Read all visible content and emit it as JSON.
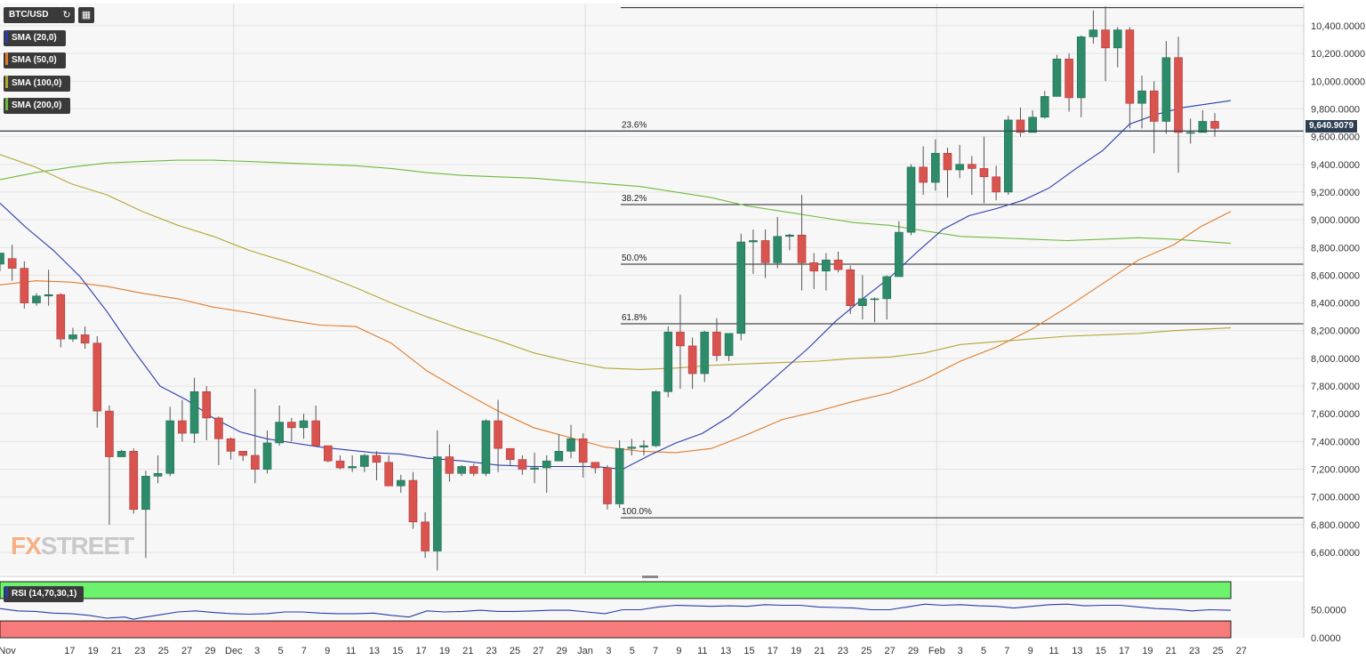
{
  "toolbar": {
    "symbol": "BTC/USD",
    "refresh_icon": "refresh-icon",
    "calendar_icon": "calendar-icon"
  },
  "legend": [
    {
      "label": "SMA (20,0)",
      "color": "#2a3bab"
    },
    {
      "label": "SMA (50,0)",
      "color": "#e07b2a"
    },
    {
      "label": "SMA (100,0)",
      "color": "#b5a534"
    },
    {
      "label": "SMA (200,0)",
      "color": "#6cbb3c"
    }
  ],
  "rsi_label": "RSI (14,70,30,1)",
  "price_tag": "9,640.9079",
  "watermark": {
    "a": "FX",
    "b": "STREET"
  },
  "chart_data": {
    "type": "candlestick",
    "title": "",
    "y_ticks": [
      "10,400.0000",
      "10,200.0000",
      "10,000.0000",
      "9,800.0000",
      "9,600.0000",
      "9,400.0000",
      "9,200.0000",
      "9,000.0000",
      "8,800.0000",
      "8,600.0000",
      "8,400.0000",
      "8,200.0000",
      "8,000.0000",
      "7,800.0000",
      "7,600.0000",
      "7,400.0000",
      "7,200.0000",
      "7,000.0000",
      "6,800.0000",
      "6,600.0000"
    ],
    "ylim": [
      6440,
      10560
    ],
    "x_ticks": [
      "Nov",
      "17",
      "19",
      "21",
      "23",
      "25",
      "27",
      "29",
      "Dec",
      "3",
      "5",
      "7",
      "9",
      "11",
      "13",
      "15",
      "17",
      "19",
      "21",
      "23",
      "25",
      "27",
      "29",
      "Jan",
      "3",
      "5",
      "7",
      "9",
      "11",
      "13",
      "15",
      "17",
      "19",
      "21",
      "23",
      "25",
      "27",
      "29",
      "Feb",
      "3",
      "5",
      "7",
      "9",
      "11",
      "13",
      "15",
      "17",
      "19",
      "21",
      "23",
      "25",
      "27"
    ],
    "rsi_ticks": [
      "50.0000",
      "0.0000"
    ],
    "current_price": 9640.9079,
    "fibonacci": [
      {
        "label": "23.6%",
        "value": 9640
      },
      {
        "label": "38.2%",
        "value": 9110
      },
      {
        "label": "50.0%",
        "value": 8680
      },
      {
        "label": "61.8%",
        "value": 8250
      },
      {
        "label": "100.0%",
        "value": 6850
      }
    ],
    "fib_top": 10530,
    "candles": [
      [
        8680,
        8760,
        8630,
        8720
      ],
      [
        8720,
        8650,
        8560,
        8820
      ],
      [
        8650,
        8400,
        8360,
        8700
      ],
      [
        8400,
        8450,
        8380,
        8470
      ],
      [
        8450,
        8460,
        8380,
        8640
      ],
      [
        8460,
        8140,
        8080,
        8470
      ],
      [
        8140,
        8170,
        8120,
        8220
      ],
      [
        8170,
        8110,
        8070,
        8230
      ],
      [
        8110,
        7620,
        7500,
        8160
      ],
      [
        7620,
        7290,
        6800,
        7660
      ],
      [
        7290,
        7330,
        7290,
        7340
      ],
      [
        7330,
        6910,
        6880,
        7350
      ],
      [
        6910,
        7150,
        6560,
        7190
      ],
      [
        7150,
        7170,
        7100,
        7300
      ],
      [
        7170,
        7550,
        7150,
        7650
      ],
      [
        7550,
        7460,
        7400,
        7700
      ],
      [
        7460,
        7760,
        7390,
        7860
      ],
      [
        7760,
        7570,
        7410,
        7800
      ],
      [
        7570,
        7420,
        7230,
        7580
      ],
      [
        7420,
        7330,
        7270,
        7430
      ],
      [
        7330,
        7300,
        7260,
        7330
      ],
      [
        7300,
        7200,
        7100,
        7780
      ],
      [
        7200,
        7390,
        7170,
        7480
      ],
      [
        7390,
        7540,
        7370,
        7660
      ],
      [
        7540,
        7500,
        7400,
        7570
      ],
      [
        7500,
        7550,
        7420,
        7600
      ],
      [
        7550,
        7370,
        7370,
        7660
      ],
      [
        7370,
        7260,
        7250,
        7350
      ],
      [
        7260,
        7210,
        7200,
        7300
      ],
      [
        7210,
        7220,
        7180,
        7300
      ],
      [
        7220,
        7300,
        7180,
        7310
      ],
      [
        7300,
        7250,
        7120,
        7330
      ],
      [
        7250,
        7080,
        7080,
        7300
      ],
      [
        7080,
        7120,
        7030,
        7160
      ],
      [
        7120,
        6820,
        6770,
        7180
      ],
      [
        6820,
        6610,
        6560,
        6890
      ],
      [
        6610,
        7290,
        6470,
        7480
      ],
      [
        7290,
        7170,
        7110,
        7380
      ],
      [
        7170,
        7220,
        7150,
        7230
      ],
      [
        7220,
        7170,
        7150,
        7240
      ],
      [
        7170,
        7550,
        7150,
        7560
      ],
      [
        7550,
        7350,
        7180,
        7700
      ],
      [
        7350,
        7270,
        7230,
        7350
      ],
      [
        7270,
        7200,
        7160,
        7300
      ],
      [
        7200,
        7210,
        7100,
        7320
      ],
      [
        7210,
        7260,
        7030,
        7300
      ],
      [
        7260,
        7330,
        7270,
        7450
      ],
      [
        7330,
        7420,
        7280,
        7520
      ],
      [
        7420,
        7250,
        7140,
        7460
      ],
      [
        7250,
        7210,
        7170,
        7220
      ],
      [
        7210,
        6950,
        6910,
        7230
      ],
      [
        6950,
        7350,
        6920,
        7410
      ],
      [
        7350,
        7360,
        7300,
        7420
      ],
      [
        7360,
        7370,
        7300,
        7410
      ],
      [
        7370,
        7760,
        7360,
        7770
      ],
      [
        7760,
        8190,
        7720,
        8230
      ],
      [
        8190,
        8090,
        7780,
        8460
      ],
      [
        8090,
        7890,
        7780,
        8150
      ],
      [
        7890,
        8190,
        7830,
        8200
      ],
      [
        8190,
        8020,
        7980,
        8290
      ],
      [
        8020,
        8180,
        7980,
        8180
      ],
      [
        8180,
        8840,
        8130,
        8900
      ],
      [
        8840,
        8850,
        8610,
        8930
      ],
      [
        8850,
        8690,
        8580,
        8930
      ],
      [
        8690,
        8880,
        8650,
        9020
      ],
      [
        8880,
        8890,
        8780,
        8900
      ],
      [
        8890,
        8690,
        8490,
        9180
      ],
      [
        8690,
        8630,
        8500,
        8760
      ],
      [
        8630,
        8710,
        8490,
        8760
      ],
      [
        8710,
        8640,
        8620,
        8770
      ],
      [
        8640,
        8380,
        8320,
        8670
      ],
      [
        8380,
        8430,
        8280,
        8600
      ],
      [
        8430,
        8430,
        8260,
        8440
      ],
      [
        8430,
        8590,
        8280,
        8600
      ],
      [
        8590,
        8910,
        8600,
        8990
      ],
      [
        8910,
        9380,
        8890,
        9400
      ],
      [
        9380,
        9270,
        9180,
        9530
      ],
      [
        9270,
        9480,
        9210,
        9580
      ],
      [
        9480,
        9360,
        9160,
        9520
      ],
      [
        9360,
        9400,
        9300,
        9540
      ],
      [
        9400,
        9370,
        9180,
        9460
      ],
      [
        9370,
        9310,
        9120,
        9600
      ],
      [
        9310,
        9200,
        9140,
        9390
      ],
      [
        9200,
        9720,
        9180,
        9750
      ],
      [
        9720,
        9630,
        9600,
        9810
      ],
      [
        9630,
        9740,
        9630,
        9790
      ],
      [
        9740,
        9890,
        9730,
        9930
      ],
      [
        9890,
        10160,
        9890,
        10190
      ],
      [
        10160,
        9880,
        9780,
        10200
      ],
      [
        9880,
        10320,
        9740,
        10330
      ],
      [
        10320,
        10370,
        10270,
        10510
      ],
      [
        10370,
        10240,
        10000,
        10540
      ],
      [
        10240,
        10370,
        10100,
        10390
      ],
      [
        10370,
        9840,
        9660,
        10390
      ],
      [
        9840,
        9930,
        9660,
        10040
      ],
      [
        9930,
        9710,
        9480,
        10000
      ],
      [
        9710,
        10170,
        9620,
        10290
      ],
      [
        10170,
        9630,
        9340,
        10320
      ],
      [
        9630,
        9630,
        9550,
        9730
      ],
      [
        9630,
        9710,
        9660,
        9790
      ],
      [
        9710,
        9660,
        9600,
        9770
      ]
    ],
    "sma20": [
      [
        0,
        9120
      ],
      [
        10,
        9060
      ],
      [
        30,
        8940
      ],
      [
        60,
        8780
      ],
      [
        90,
        8590
      ],
      [
        120,
        8340
      ],
      [
        150,
        8060
      ],
      [
        180,
        7800
      ],
      [
        210,
        7700
      ],
      [
        240,
        7570
      ],
      [
        270,
        7470
      ],
      [
        300,
        7420
      ],
      [
        330,
        7390
      ],
      [
        360,
        7360
      ],
      [
        390,
        7340
      ],
      [
        420,
        7320
      ],
      [
        450,
        7310
      ],
      [
        480,
        7280
      ],
      [
        520,
        7260
      ],
      [
        560,
        7230
      ],
      [
        600,
        7220
      ],
      [
        640,
        7220
      ],
      [
        670,
        7220
      ],
      [
        700,
        7200
      ],
      [
        730,
        7300
      ],
      [
        760,
        7390
      ],
      [
        790,
        7460
      ],
      [
        820,
        7580
      ],
      [
        850,
        7740
      ],
      [
        880,
        7910
      ],
      [
        910,
        8080
      ],
      [
        940,
        8270
      ],
      [
        970,
        8430
      ],
      [
        1000,
        8580
      ],
      [
        1030,
        8760
      ],
      [
        1060,
        8930
      ],
      [
        1090,
        9030
      ],
      [
        1120,
        9080
      ],
      [
        1150,
        9140
      ],
      [
        1180,
        9230
      ],
      [
        1210,
        9370
      ],
      [
        1240,
        9500
      ],
      [
        1270,
        9690
      ],
      [
        1300,
        9760
      ],
      [
        1330,
        9810
      ],
      [
        1384,
        9860
      ]
    ],
    "sma50": [
      [
        0,
        8530
      ],
      [
        40,
        8560
      ],
      [
        80,
        8550
      ],
      [
        120,
        8520
      ],
      [
        160,
        8470
      ],
      [
        200,
        8430
      ],
      [
        240,
        8370
      ],
      [
        280,
        8330
      ],
      [
        320,
        8280
      ],
      [
        360,
        8240
      ],
      [
        400,
        8230
      ],
      [
        440,
        8110
      ],
      [
        480,
        7910
      ],
      [
        520,
        7760
      ],
      [
        560,
        7620
      ],
      [
        600,
        7500
      ],
      [
        640,
        7430
      ],
      [
        680,
        7360
      ],
      [
        720,
        7330
      ],
      [
        760,
        7320
      ],
      [
        800,
        7350
      ],
      [
        840,
        7450
      ],
      [
        880,
        7560
      ],
      [
        920,
        7620
      ],
      [
        960,
        7690
      ],
      [
        1000,
        7750
      ],
      [
        1040,
        7850
      ],
      [
        1080,
        7980
      ],
      [
        1120,
        8080
      ],
      [
        1160,
        8210
      ],
      [
        1200,
        8370
      ],
      [
        1240,
        8540
      ],
      [
        1280,
        8710
      ],
      [
        1320,
        8820
      ],
      [
        1350,
        8950
      ],
      [
        1384,
        9060
      ]
    ],
    "sma100": [
      [
        0,
        9470
      ],
      [
        40,
        9380
      ],
      [
        80,
        9260
      ],
      [
        120,
        9180
      ],
      [
        160,
        9060
      ],
      [
        200,
        8960
      ],
      [
        240,
        8880
      ],
      [
        280,
        8780
      ],
      [
        320,
        8700
      ],
      [
        360,
        8610
      ],
      [
        400,
        8510
      ],
      [
        440,
        8400
      ],
      [
        480,
        8300
      ],
      [
        520,
        8210
      ],
      [
        560,
        8130
      ],
      [
        600,
        8040
      ],
      [
        640,
        7980
      ],
      [
        680,
        7930
      ],
      [
        720,
        7920
      ],
      [
        760,
        7930
      ],
      [
        800,
        7950
      ],
      [
        840,
        7960
      ],
      [
        880,
        7970
      ],
      [
        920,
        7980
      ],
      [
        960,
        8000
      ],
      [
        1000,
        8010
      ],
      [
        1040,
        8040
      ],
      [
        1080,
        8100
      ],
      [
        1120,
        8120
      ],
      [
        1160,
        8140
      ],
      [
        1200,
        8160
      ],
      [
        1240,
        8170
      ],
      [
        1280,
        8180
      ],
      [
        1320,
        8200
      ],
      [
        1384,
        8220
      ]
    ],
    "sma200": [
      [
        0,
        9290
      ],
      [
        40,
        9340
      ],
      [
        80,
        9380
      ],
      [
        120,
        9410
      ],
      [
        160,
        9420
      ],
      [
        200,
        9430
      ],
      [
        240,
        9430
      ],
      [
        280,
        9420
      ],
      [
        320,
        9410
      ],
      [
        360,
        9400
      ],
      [
        400,
        9390
      ],
      [
        440,
        9370
      ],
      [
        480,
        9340
      ],
      [
        520,
        9320
      ],
      [
        560,
        9310
      ],
      [
        600,
        9300
      ],
      [
        640,
        9280
      ],
      [
        680,
        9260
      ],
      [
        720,
        9240
      ],
      [
        760,
        9200
      ],
      [
        800,
        9160
      ],
      [
        840,
        9100
      ],
      [
        880,
        9060
      ],
      [
        920,
        9020
      ],
      [
        960,
        8980
      ],
      [
        1000,
        8960
      ],
      [
        1040,
        8920
      ],
      [
        1080,
        8880
      ],
      [
        1120,
        8870
      ],
      [
        1160,
        8860
      ],
      [
        1200,
        8850
      ],
      [
        1240,
        8860
      ],
      [
        1280,
        8870
      ],
      [
        1320,
        8860
      ],
      [
        1384,
        8830
      ]
    ],
    "rsi": [
      [
        0,
        52
      ],
      [
        20,
        48
      ],
      [
        40,
        47
      ],
      [
        60,
        44
      ],
      [
        80,
        43
      ],
      [
        100,
        40
      ],
      [
        120,
        35
      ],
      [
        140,
        37
      ],
      [
        150,
        33
      ],
      [
        160,
        36
      ],
      [
        180,
        41
      ],
      [
        200,
        46
      ],
      [
        220,
        48
      ],
      [
        240,
        45
      ],
      [
        260,
        43
      ],
      [
        280,
        42
      ],
      [
        300,
        43
      ],
      [
        320,
        46
      ],
      [
        340,
        46
      ],
      [
        360,
        44
      ],
      [
        380,
        43
      ],
      [
        400,
        43
      ],
      [
        420,
        44
      ],
      [
        440,
        40
      ],
      [
        460,
        37
      ],
      [
        480,
        48
      ],
      [
        500,
        46
      ],
      [
        520,
        47
      ],
      [
        540,
        49
      ],
      [
        560,
        47
      ],
      [
        580,
        47
      ],
      [
        600,
        48
      ],
      [
        620,
        49
      ],
      [
        640,
        49
      ],
      [
        660,
        46
      ],
      [
        680,
        43
      ],
      [
        700,
        50
      ],
      [
        720,
        50
      ],
      [
        740,
        55
      ],
      [
        760,
        58
      ],
      [
        780,
        57
      ],
      [
        800,
        56
      ],
      [
        820,
        57
      ],
      [
        840,
        56
      ],
      [
        860,
        59
      ],
      [
        880,
        58
      ],
      [
        900,
        58
      ],
      [
        920,
        55
      ],
      [
        940,
        54
      ],
      [
        960,
        53
      ],
      [
        980,
        50
      ],
      [
        1000,
        50
      ],
      [
        1020,
        55
      ],
      [
        1040,
        60
      ],
      [
        1060,
        58
      ],
      [
        1080,
        59
      ],
      [
        1100,
        57
      ],
      [
        1120,
        56
      ],
      [
        1140,
        53
      ],
      [
        1160,
        56
      ],
      [
        1180,
        59
      ],
      [
        1200,
        60
      ],
      [
        1220,
        57
      ],
      [
        1240,
        58
      ],
      [
        1260,
        58
      ],
      [
        1280,
        55
      ],
      [
        1300,
        52
      ],
      [
        1320,
        51
      ],
      [
        1340,
        48
      ],
      [
        1360,
        50
      ],
      [
        1384,
        49
      ]
    ]
  }
}
